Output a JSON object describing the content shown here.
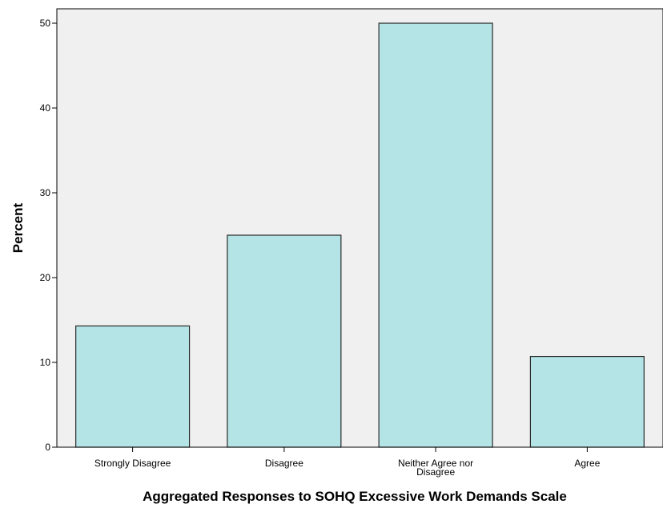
{
  "chart_data": {
    "type": "bar",
    "categories": [
      [
        "Strongly Disagree"
      ],
      [
        "Disagree"
      ],
      [
        "Neither Agree nor",
        "Disagree"
      ],
      [
        "Agree"
      ]
    ],
    "values": [
      14.3,
      25.0,
      50.0,
      10.7
    ],
    "xlabel": "Aggregated Responses to SOHQ Excessive Work Demands Scale",
    "ylabel": "Percent",
    "ylim": [
      0,
      51.7
    ],
    "yticks": [
      0,
      10,
      20,
      30,
      40,
      50
    ],
    "grid": false,
    "legend": "none",
    "colors": {
      "bar_fill": "#b4e4e6",
      "bar_stroke": "#2a2a2a",
      "plot_background": "#f0f0f0",
      "axis": "#000000"
    }
  }
}
